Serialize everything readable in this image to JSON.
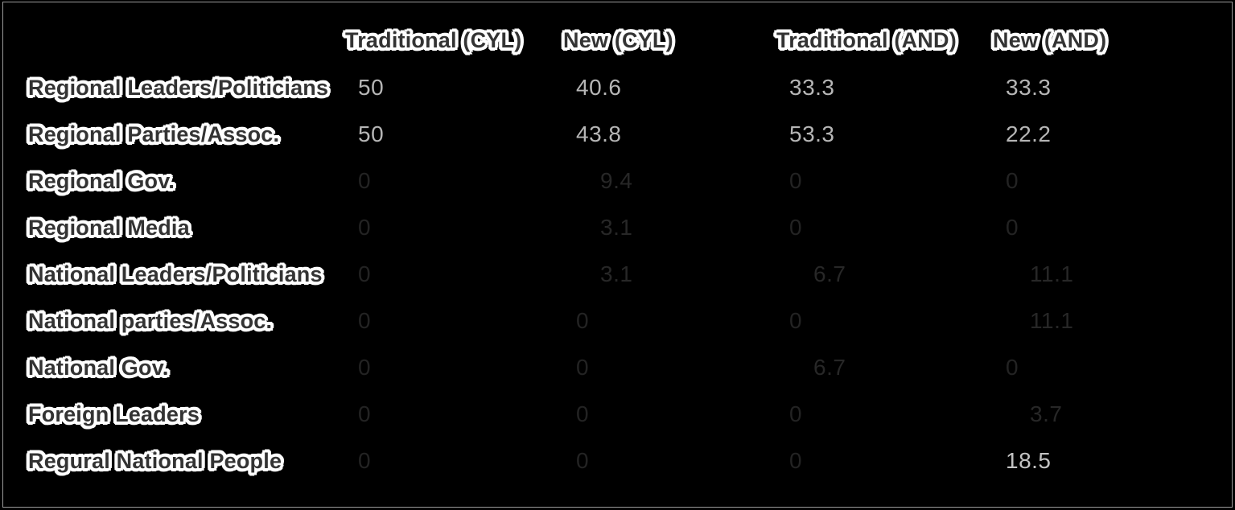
{
  "page": {
    "background": "#000000",
    "frame_border_color": "#9b9b9b"
  },
  "colors": {
    "bright_value": "#b6b6b6",
    "dim_value": "#232323",
    "label_fill": "#333333",
    "label_halo": "#ffffff"
  },
  "chart_data": {
    "type": "table",
    "title": "",
    "columns": [
      "",
      "Traditional (CYL)",
      "New (CYL)",
      "Traditional (AND)",
      "New (AND)"
    ],
    "rows": [
      {
        "label": "Regional Leaders/Politicians",
        "values": [
          "50",
          "40.6",
          "33.3",
          "33.3"
        ],
        "tones": [
          "normal",
          "normal",
          "normal",
          "normal"
        ]
      },
      {
        "label": "Regional Parties/Assoc.",
        "values": [
          "50",
          "43.8",
          "53.3",
          "22.2"
        ],
        "tones": [
          "normal",
          "normal",
          "normal",
          "normal"
        ]
      },
      {
        "label": "Regional Gov.",
        "values": [
          "0",
          "9.4",
          "0",
          "0"
        ],
        "tones": [
          "dim",
          "dim-num",
          "dim",
          "dim"
        ]
      },
      {
        "label": "Regional Media",
        "values": [
          "0",
          "3.1",
          "0",
          "0"
        ],
        "tones": [
          "dim",
          "dim-num",
          "dim",
          "dim"
        ]
      },
      {
        "label": "National Leaders/Politicians",
        "values": [
          "0",
          "3.1",
          "6.7",
          "11.1"
        ],
        "tones": [
          "dim",
          "dim-num",
          "dim-num",
          "dim-num"
        ]
      },
      {
        "label": "National parties/Assoc.",
        "values": [
          "0",
          "0",
          "0",
          "11.1"
        ],
        "tones": [
          "dim",
          "dim",
          "dim",
          "dim-num"
        ]
      },
      {
        "label": "National Gov.",
        "values": [
          "0",
          "0",
          "6.7",
          "0"
        ],
        "tones": [
          "dim",
          "dim",
          "dim-num",
          "dim"
        ]
      },
      {
        "label": "Foreign Leaders",
        "values": [
          "0",
          "0",
          "0",
          "3.7"
        ],
        "tones": [
          "dim",
          "dim",
          "dim",
          "dim-num"
        ]
      },
      {
        "label": "Regural National People",
        "values": [
          "0",
          "0",
          "0",
          "18.5"
        ],
        "tones": [
          "dim",
          "dim",
          "dim",
          "bright"
        ]
      }
    ]
  }
}
